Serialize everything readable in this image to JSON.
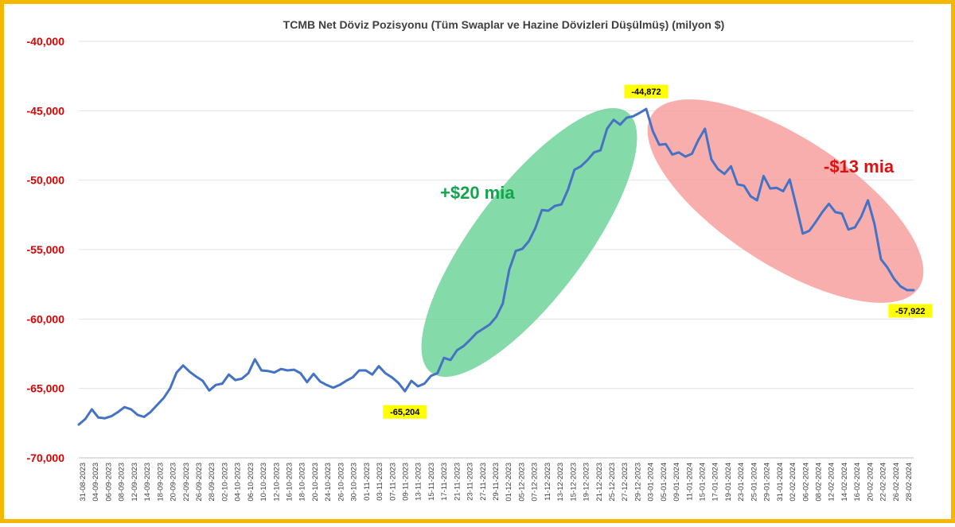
{
  "colors": {
    "frame": "#f5b800",
    "line": "#4472c4",
    "ytick": "#e00000",
    "callout_bg": "#ffff00",
    "green_ellipse": "#6fd49a",
    "red_ellipse": "#f79a9a",
    "green_text": "#14a44d",
    "red_text": "#e01010"
  },
  "chart_data": {
    "type": "line",
    "title": "TCMB Net Döviz Pozisyonu (Tüm Swaplar ve Hazine Dövizleri Düşülmüş) (milyon $)",
    "ylim": [
      -70000,
      -40000
    ],
    "y_ticks": [
      -40000,
      -45000,
      -50000,
      -55000,
      -60000,
      -65000,
      -70000
    ],
    "y_tick_labels": [
      "-40,000",
      "-45,000",
      "-50,000",
      "-55,000",
      "-60,000",
      "-65,000",
      "-70,000"
    ],
    "grid": "horizontal",
    "x_tick_labels": [
      "31-08-2023",
      "04-09-2023",
      "06-09-2023",
      "08-09-2023",
      "12-09-2023",
      "14-09-2023",
      "18-09-2023",
      "20-09-2023",
      "22-09-2023",
      "26-09-2023",
      "28-09-2023",
      "02-10-2023",
      "04-10-2023",
      "06-10-2023",
      "10-10-2023",
      "12-10-2023",
      "16-10-2023",
      "18-10-2023",
      "20-10-2023",
      "24-10-2023",
      "26-10-2023",
      "30-10-2023",
      "01-11-2023",
      "03-11-2023",
      "07-11-2023",
      "09-11-2023",
      "13-11-2023",
      "15-11-2023",
      "17-11-2023",
      "21-11-2023",
      "23-11-2023",
      "27-11-2023",
      "29-11-2023",
      "01-12-2023",
      "05-12-2023",
      "07-12-2023",
      "11-12-2023",
      "13-12-2023",
      "15-12-2023",
      "19-12-2023",
      "21-12-2023",
      "25-12-2023",
      "27-12-2023",
      "29-12-2023",
      "03-01-2024",
      "05-01-2024",
      "09-01-2024",
      "11-01-2024",
      "15-01-2024",
      "17-01-2024",
      "19-01-2024",
      "23-01-2024",
      "25-01-2024",
      "29-01-2024",
      "31-01-2024",
      "02-02-2024",
      "06-02-2024",
      "08-02-2024",
      "12-02-2024",
      "14-02-2024",
      "16-02-2024",
      "20-02-2024",
      "22-02-2024",
      "26-02-2024",
      "28-02-2024"
    ],
    "series": [
      {
        "values": [
          -67600,
          -67200,
          -66500,
          -67100,
          -67150,
          -67000,
          -66700,
          -66350,
          -66500,
          -66900,
          -67050,
          -66700,
          -66200,
          -65700,
          -65000,
          -63850,
          -63350,
          -63800,
          -64150,
          -64450,
          -65150,
          -64750,
          -64650,
          -64000,
          -64400,
          -64300,
          -63900,
          -62900,
          -63700,
          -63750,
          -63850,
          -63600,
          -63700,
          -63650,
          -63900,
          -64550,
          -63950,
          -64500,
          -64750,
          -64950,
          -64750,
          -64450,
          -64200,
          -63700,
          -63700,
          -64000,
          -63400,
          -63900,
          -64200,
          -64600,
          -65204,
          -64450,
          -64850,
          -64650,
          -64100,
          -63900,
          -62800,
          -62950,
          -62250,
          -61950,
          -61500,
          -61000,
          -60700,
          -60400,
          -59850,
          -58900,
          -56450,
          -55100,
          -54950,
          -54400,
          -53450,
          -52150,
          -52200,
          -51850,
          -51750,
          -50700,
          -49250,
          -49000,
          -48550,
          -48000,
          -47850,
          -46300,
          -45650,
          -46000,
          -45500,
          -45400,
          -45150,
          -44872,
          -46450,
          -47450,
          -47400,
          -48150,
          -48000,
          -48300,
          -48100,
          -47100,
          -46300,
          -48500,
          -49200,
          -49550,
          -49000,
          -50300,
          -50400,
          -51150,
          -51450,
          -49700,
          -50600,
          -50550,
          -50800,
          -49950,
          -51850,
          -53850,
          -53650,
          -53000,
          -52300,
          -51700,
          -52300,
          -52400,
          -53550,
          -53400,
          -52600,
          -51450,
          -53150,
          -55700,
          -56300,
          -57100,
          -57650,
          -57922,
          -57922
        ]
      }
    ],
    "callouts": [
      {
        "label": "-65,204",
        "index": 50
      },
      {
        "label": "-44,872",
        "index": 87
      },
      {
        "label": "-57,922",
        "index": 127
      }
    ],
    "annotations": [
      {
        "text": "+$20 mia",
        "color": "green"
      },
      {
        "text": "-$13 mia",
        "color": "red"
      }
    ]
  }
}
